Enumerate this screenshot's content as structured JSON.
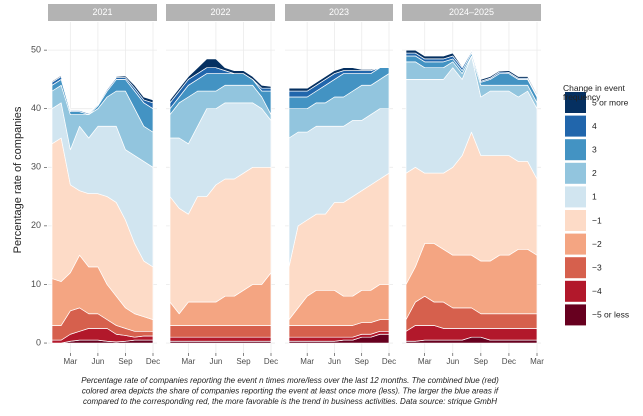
{
  "chart_data": {
    "type": "stacked-area",
    "ylabel": "Percentage rate of companies",
    "ylim": [
      -1.7,
      54.8
    ],
    "yticks": [
      0,
      10,
      20,
      30,
      40,
      50
    ],
    "grid": true,
    "legend_title": "Change in event frequency",
    "legend": [
      {
        "name": "−5 or less",
        "color": "#67001f"
      },
      {
        "name": "−4",
        "color": "#b2182b"
      },
      {
        "name": "−3",
        "color": "#d6604d"
      },
      {
        "name": "−2",
        "color": "#f4a582"
      },
      {
        "name": "−1",
        "color": "#fddbc7"
      },
      {
        "name": "1",
        "color": "#d1e5f0"
      },
      {
        "name": "2",
        "color": "#92c5de"
      },
      {
        "name": "3",
        "color": "#4393c3"
      },
      {
        "name": "4",
        "color": "#2166ac"
      },
      {
        "name": "5 or more",
        "color": "#053061"
      }
    ],
    "caption": [
      "Percentage rate of companies reporting the event n times more/less over the last 12 months. The combined blue (red)",
      "colored area depicts the share of companies reporting the event at least once more (less). The larger the blue areas if",
      "compared to the corresponding red, the more favorable is the trend in business activities. Data source: strique GmbH"
    ],
    "facets": [
      {
        "title": "2021",
        "categories": [
          null,
          null,
          "Mar",
          null,
          null,
          "Jun",
          null,
          null,
          "Sep",
          null,
          null,
          "Dec"
        ],
        "series": [
          {
            "values": [
              0,
              0,
              0.3,
              0.5,
              0.5,
              0.5,
              0.3,
              0.2,
              0.3,
              0.5,
              0.5,
              0.5
            ]
          },
          {
            "values": [
              0.5,
              0.5,
              1.2,
              1.5,
              2,
              2,
              2.2,
              1.3,
              1,
              0.5,
              0.7,
              0.7
            ]
          },
          {
            "values": [
              2.5,
              2.5,
              4,
              4,
              2.5,
              2.5,
              1.5,
              1.5,
              1.2,
              1,
              0.8,
              0.8
            ]
          },
          {
            "values": [
              8,
              7.5,
              6.5,
              9,
              8,
              8,
              6,
              5,
              3.5,
              3,
              2.5,
              2
            ]
          },
          {
            "values": [
              23,
              24.5,
              15,
              11,
              12.5,
              12.5,
              15,
              16,
              15,
              12,
              9.5,
              9
            ]
          },
          {
            "values": [
              6,
              6,
              6,
              11,
              9.5,
              11.5,
              12,
              13,
              12,
              15,
              17,
              17
            ]
          },
          {
            "values": [
              3,
              3,
              6,
              2,
              4,
              3,
              5,
              6,
              10,
              8,
              6,
              6
            ]
          },
          {
            "values": [
              1,
              1,
              0.5,
              0.5,
              0,
              0.5,
              1,
              2,
              2,
              3,
              4,
              4
            ]
          },
          {
            "values": [
              0.5,
              0.5,
              0.2,
              0.2,
              0.2,
              0.2,
              0.3,
              0.3,
              0.3,
              0.5,
              0.5,
              1
            ]
          },
          {
            "values": [
              0.2,
              0.2,
              0.1,
              0.1,
              0.1,
              0.1,
              0.2,
              0.2,
              0.3,
              0.5,
              0.5,
              0.5
            ]
          }
        ]
      },
      {
        "title": "2022",
        "categories": [
          null,
          null,
          "Mar",
          null,
          null,
          "Jun",
          null,
          null,
          "Sep",
          null,
          null,
          "Dec"
        ],
        "series": [
          {
            "values": [
              0.3,
              0.3,
              0.3,
              0.3,
              0.3,
              0.3,
              0.3,
              0.3,
              0.3,
              0.3,
              0.3,
              0.3
            ]
          },
          {
            "values": [
              0.7,
              0.7,
              0.7,
              0.7,
              0.7,
              0.7,
              0.7,
              0.7,
              0.7,
              0.7,
              0.7,
              0.7
            ]
          },
          {
            "values": [
              2,
              2,
              2,
              2,
              2,
              2,
              2,
              2,
              2,
              2,
              2,
              2
            ]
          },
          {
            "values": [
              4,
              2,
              4,
              4,
              4,
              4,
              5,
              5,
              6,
              7,
              7,
              9
            ]
          },
          {
            "values": [
              18,
              18,
              15,
              18,
              18,
              20,
              20,
              20,
              20,
              20,
              20,
              18
            ]
          },
          {
            "values": [
              10,
              12,
              12,
              12,
              15,
              13,
              13,
              13,
              12,
              11,
              10,
              8
            ]
          },
          {
            "values": [
              4,
              6,
              8,
              6,
              3,
              3,
              3,
              3,
              3,
              3,
              2,
              1
            ]
          },
          {
            "values": [
              1,
              1,
              2,
              2,
              3,
              3,
              2,
              2,
              2,
              1,
              1,
              4
            ]
          },
          {
            "values": [
              1,
              1,
              1,
              1,
              1,
              1,
              0.5,
              0,
              0,
              0,
              0.5,
              0.5
            ]
          },
          {
            "values": [
              0.5,
              0.5,
              0.5,
              1,
              1.5,
              1.5,
              0.5,
              0.5,
              0.5,
              0.5,
              0.5,
              0.3
            ]
          }
        ]
      },
      {
        "title": "2023",
        "categories": [
          null,
          null,
          "Mar",
          null,
          null,
          "Jun",
          null,
          null,
          "Sep",
          null,
          null,
          "Dec"
        ],
        "series": [
          {
            "values": [
              0.3,
              0.3,
              0.3,
              0.3,
              0.3,
              0.3,
              0.5,
              0.5,
              1,
              1,
              1.5,
              1.5
            ]
          },
          {
            "values": [
              0.7,
              0.7,
              0.7,
              0.7,
              0.7,
              0.7,
              0.5,
              0.5,
              0.5,
              0.5,
              0.5,
              0.5
            ]
          },
          {
            "values": [
              2,
              2,
              2,
              2,
              2,
              2,
              2,
              2,
              2,
              2,
              2,
              2
            ]
          },
          {
            "values": [
              1,
              3,
              5,
              6,
              6,
              6,
              5,
              5,
              5.5,
              5.5,
              6,
              6
            ]
          },
          {
            "values": [
              9,
              14,
              13,
              13,
              13,
              15,
              16,
              17,
              17,
              18,
              18,
              19
            ]
          },
          {
            "values": [
              22,
              16,
              15,
              15,
              15,
              13,
              13,
              13,
              12,
              12,
              12,
              11
            ]
          },
          {
            "values": [
              5,
              4,
              4,
              4,
              4,
              5,
              5,
              5,
              6,
              5,
              5,
              6
            ]
          },
          {
            "values": [
              2,
              2,
              2,
              2,
              3,
              3,
              4,
              3,
              2,
              2,
              2,
              1
            ]
          },
          {
            "values": [
              1,
              1,
              1,
              1,
              1,
              1,
              0.5,
              0.5,
              0.5,
              0.5,
              0,
              0
            ]
          },
          {
            "values": [
              0.5,
              0.5,
              0.5,
              0.5,
              0.5,
              0.5,
              0.5,
              0.5,
              0.2,
              0.2,
              0,
              0
            ]
          }
        ]
      },
      {
        "title": "2024–2025",
        "categories": [
          null,
          null,
          "Mar",
          null,
          null,
          "Jun",
          null,
          null,
          "Sep",
          null,
          null,
          "Dec",
          null,
          null,
          "Mar"
        ],
        "series": [
          {
            "values": [
              0.3,
              0.3,
              0.5,
              0.5,
              0.5,
              0.5,
              0.5,
              1,
              1,
              0.5,
              0.5,
              0.5,
              0.5,
              0.5,
              0.5
            ]
          },
          {
            "values": [
              1.7,
              2.7,
              2.5,
              2.5,
              2,
              2,
              2,
              1.5,
              1.5,
              2,
              2,
              2,
              2,
              2,
              2
            ]
          },
          {
            "values": [
              2,
              4,
              5,
              4,
              4.5,
              3.5,
              3.5,
              3.5,
              2.5,
              2.5,
              2.5,
              2.5,
              2.5,
              2.5,
              2.5
            ]
          },
          {
            "values": [
              6,
              6,
              9,
              10,
              9,
              9,
              9,
              9,
              9,
              9,
              10,
              10,
              11,
              11,
              10
            ]
          },
          {
            "values": [
              19,
              17,
              12,
              12,
              13,
              15,
              17,
              21,
              18,
              18,
              17,
              17,
              15,
              15,
              13
            ]
          },
          {
            "values": [
              16,
              15,
              16,
              16,
              16,
              17,
              13,
              13,
              10,
              11,
              11,
              11,
              11,
              12,
              12
            ]
          },
          {
            "values": [
              3,
              3,
              2,
              2,
              2,
              1,
              1,
              0,
              2,
              1,
              1,
              1,
              2,
              1,
              1
            ]
          },
          {
            "values": [
              1,
              1,
              1,
              1,
              1,
              0.5,
              0.5,
              0.5,
              0.5,
              1,
              2,
              2,
              1,
              1,
              1
            ]
          },
          {
            "values": [
              0.5,
              0.5,
              0.5,
              0.5,
              0.5,
              0.5,
              0.5,
              0.3,
              0.2,
              0.2,
              0.3,
              0.2,
              0.2,
              0.2,
              0.2
            ]
          },
          {
            "values": [
              0.5,
              0.5,
              0.5,
              0.5,
              0.5,
              0.5,
              0.2,
              0.2,
              0.3,
              0.3,
              0.2,
              0.3,
              0.3,
              0.3,
              0.3
            ]
          }
        ]
      }
    ]
  }
}
